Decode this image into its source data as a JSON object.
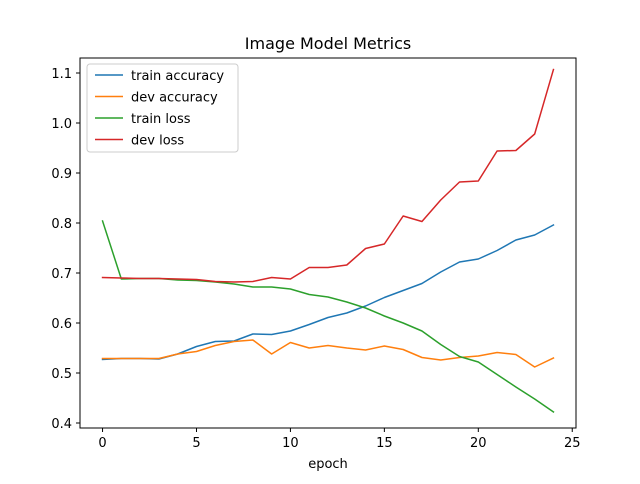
{
  "chart_data": {
    "type": "line",
    "title": "Image Model Metrics",
    "xlabel": "epoch",
    "ylabel": "",
    "xlim": [
      -1.2,
      25.2
    ],
    "ylim": [
      0.39,
      1.13
    ],
    "xticks": [
      0,
      5,
      10,
      15,
      20,
      25
    ],
    "xtick_labels": [
      "0",
      "5",
      "10",
      "15",
      "20",
      "25"
    ],
    "yticks": [
      0.4,
      0.5,
      0.6,
      0.7,
      0.8,
      0.9,
      1.0,
      1.1
    ],
    "ytick_labels": [
      "0.4",
      "0.5",
      "0.6",
      "0.7",
      "0.8",
      "0.9",
      "1.0",
      "1.1"
    ],
    "grid": false,
    "legend_position": "top-left",
    "x": [
      0,
      1,
      2,
      3,
      4,
      5,
      6,
      7,
      8,
      9,
      10,
      11,
      12,
      13,
      14,
      15,
      16,
      17,
      18,
      19,
      20,
      21,
      22,
      23,
      24
    ],
    "series": [
      {
        "name": "train accuracy",
        "color": "#1f77b4",
        "values": [
          0.527,
          0.529,
          0.529,
          0.528,
          0.538,
          0.553,
          0.563,
          0.564,
          0.578,
          0.577,
          0.584,
          0.597,
          0.611,
          0.62,
          0.634,
          0.651,
          0.665,
          0.679,
          0.702,
          0.722,
          0.728,
          0.745,
          0.766,
          0.776,
          0.796
        ]
      },
      {
        "name": "dev accuracy",
        "color": "#ff7f0e",
        "values": [
          0.529,
          0.529,
          0.529,
          0.529,
          0.538,
          0.543,
          0.555,
          0.563,
          0.566,
          0.538,
          0.561,
          0.55,
          0.555,
          0.55,
          0.546,
          0.554,
          0.547,
          0.531,
          0.526,
          0.531,
          0.534,
          0.541,
          0.537,
          0.512,
          0.53
        ]
      },
      {
        "name": "train loss",
        "color": "#2ca02c",
        "values": [
          0.804,
          0.688,
          0.689,
          0.689,
          0.686,
          0.685,
          0.682,
          0.678,
          0.672,
          0.672,
          0.668,
          0.657,
          0.652,
          0.642,
          0.63,
          0.614,
          0.6,
          0.584,
          0.557,
          0.533,
          0.522,
          0.497,
          0.472,
          0.448,
          0.422
        ]
      },
      {
        "name": "dev loss",
        "color": "#d62728",
        "values": [
          0.691,
          0.69,
          0.689,
          0.689,
          0.688,
          0.687,
          0.683,
          0.682,
          0.683,
          0.691,
          0.688,
          0.711,
          0.711,
          0.716,
          0.749,
          0.758,
          0.814,
          0.803,
          0.846,
          0.882,
          0.884,
          0.944,
          0.945,
          0.978,
          1.107
        ]
      }
    ]
  }
}
